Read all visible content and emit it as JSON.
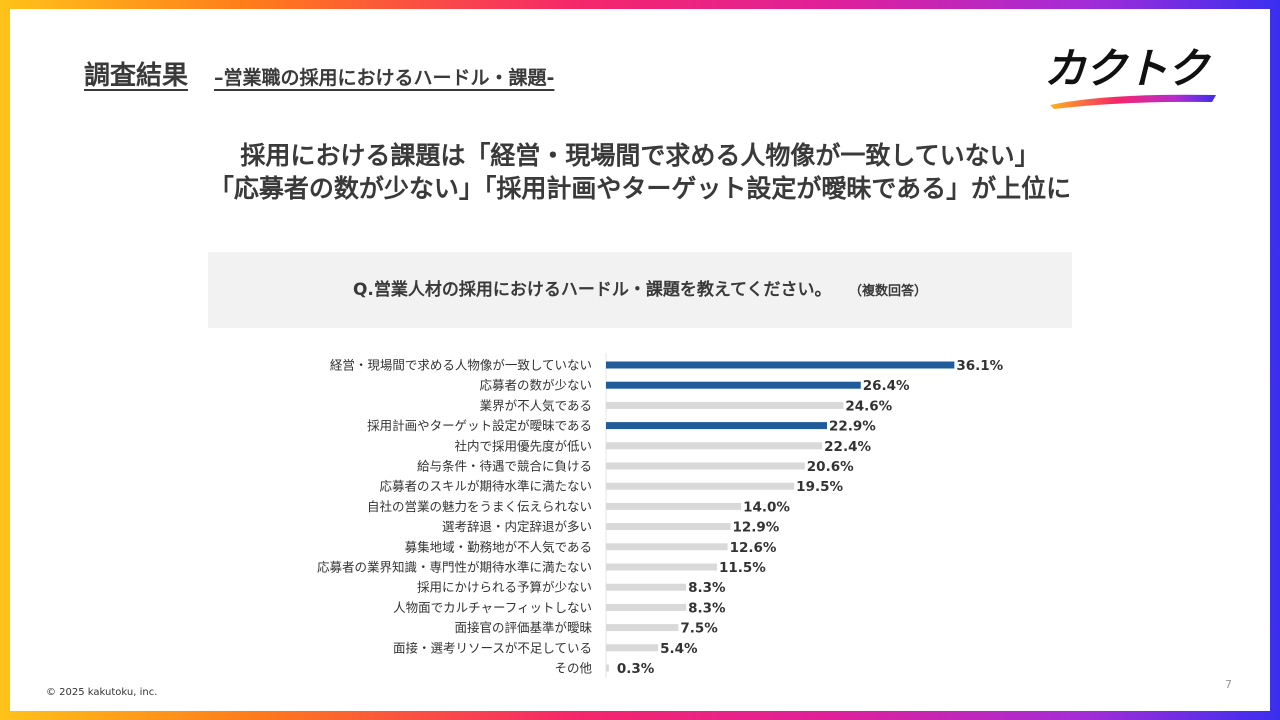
{
  "header": {
    "title": "調査結果",
    "subtitle": "–営業職の採用におけるハードル・課題-"
  },
  "logo": {
    "text": "カクトク"
  },
  "headline": {
    "line1": "採用における課題は「経営・現場間で求める人物像が一致していない」",
    "line2": "「応募者の数が少ない」「採用計画やターゲット設定が曖昧である」が上位に"
  },
  "question": {
    "text": "Q.営業人材の採用におけるハードル・課題を教えてください。",
    "note": "（複数回答）"
  },
  "chart_data": {
    "type": "bar",
    "orientation": "horizontal",
    "categories": [
      "経営・現場間で求める人物像が一致していない",
      "応募者の数が少ない",
      "業界が不人気である",
      "採用計画やターゲット設定が曖昧である",
      "社内で採用優先度が低い",
      "給与条件・待遇で競合に負ける",
      "応募者のスキルが期待水準に満たない",
      "自社の営業の魅力をうまく伝えられない",
      "選考辞退・内定辞退が多い",
      "募集地域・勤務地が不人気である",
      "応募者の業界知識・専門性が期待水準に満たない",
      "採用にかけられる予算が少ない",
      "人物面でカルチャーフィットしない",
      "面接官の評価基準が曖昧",
      "面接・選考リソースが不足している",
      "その他"
    ],
    "values": [
      36.1,
      26.4,
      24.6,
      22.9,
      22.4,
      20.6,
      19.5,
      14.0,
      12.9,
      12.6,
      11.5,
      8.3,
      8.3,
      7.5,
      5.4,
      0.3
    ],
    "value_labels": [
      "36.1%",
      "26.4%",
      "24.6%",
      "22.9%",
      "22.4%",
      "20.6%",
      "19.5%",
      "14.0%",
      "12.9%",
      "12.6%",
      "11.5%",
      "8.3%",
      "8.3%",
      "7.5%",
      "5.4%",
      "0.3%"
    ],
    "highlighted": [
      true,
      true,
      false,
      true,
      false,
      false,
      false,
      false,
      false,
      false,
      false,
      false,
      false,
      false,
      false,
      false
    ],
    "colors": {
      "highlight": "#1f5c99",
      "default": "#d9d9d9"
    },
    "xlim": [
      0,
      40
    ]
  },
  "footer": {
    "copyright": "© 2025 kakutoku, inc.",
    "page": "7"
  }
}
